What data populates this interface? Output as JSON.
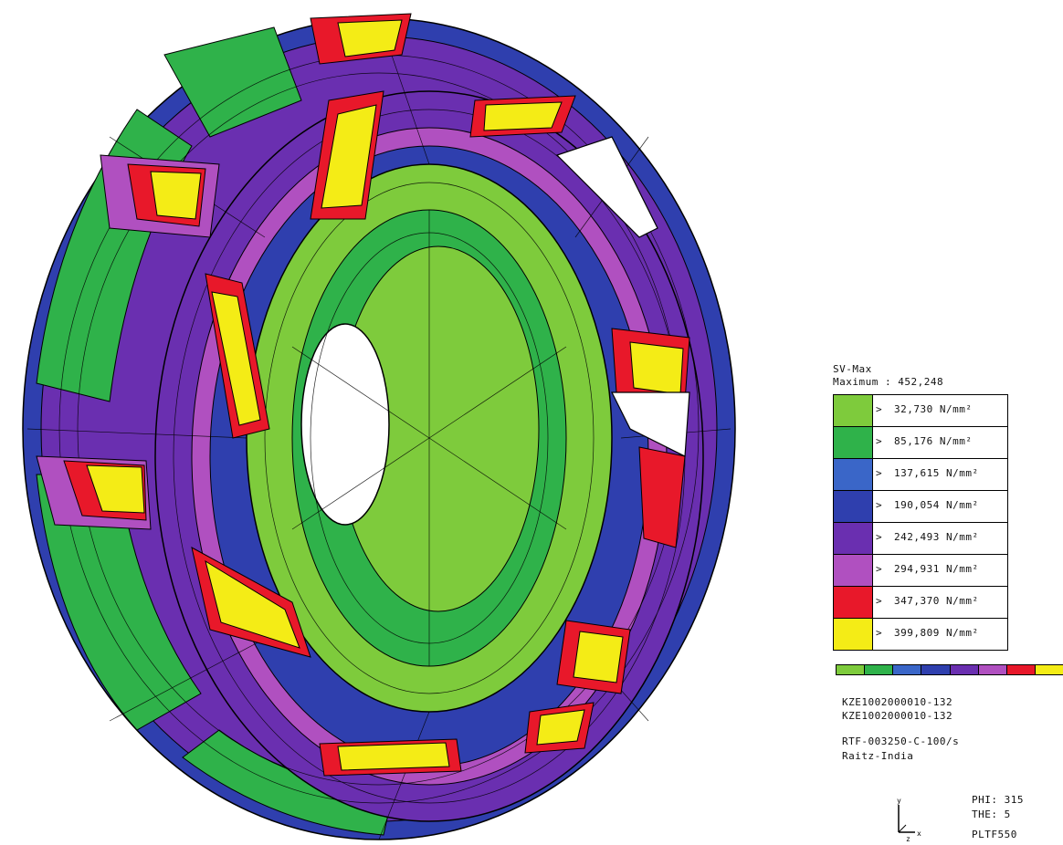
{
  "colors": {
    "green_light": "#7ecb3c",
    "green": "#2fb24a",
    "blue": "#3a66c8",
    "blue_dark": "#2f3fae",
    "purple": "#6a2fb0",
    "magenta": "#b050c0",
    "red": "#e8182a",
    "yellow": "#f4ec16",
    "mesh": "#000000"
  },
  "legend": {
    "title": "SV-Max",
    "maximum": "Maximum : 452,248",
    "entries": [
      {
        "sign": ">",
        "value": "32,730 N/mm²",
        "color": "#7ecb3c"
      },
      {
        "sign": ">",
        "value": "85,176 N/mm²",
        "color": "#2fb24a"
      },
      {
        "sign": ">",
        "value": "137,615 N/mm²",
        "color": "#3a66c8"
      },
      {
        "sign": ">",
        "value": "190,054 N/mm²",
        "color": "#2f3fae"
      },
      {
        "sign": ">",
        "value": "242,493 N/mm²",
        "color": "#6a2fb0"
      },
      {
        "sign": ">",
        "value": "294,931 N/mm²",
        "color": "#b050c0"
      },
      {
        "sign": ">",
        "value": "347,370 N/mm²",
        "color": "#e8182a"
      },
      {
        "sign": ">",
        "value": "399,809 N/mm²",
        "color": "#f4ec16"
      }
    ]
  },
  "info": {
    "line1": "KZE1002000010-132",
    "line2": "KZE1002000010-132",
    "line3": "RTF-003250-C-100/s",
    "line4": "Raitz-India"
  },
  "view": {
    "phi": "PHI: 315",
    "the": "THE:   5",
    "plot": "PLTF550"
  },
  "axes": {
    "y": "y",
    "x": "x",
    "z": "z"
  }
}
